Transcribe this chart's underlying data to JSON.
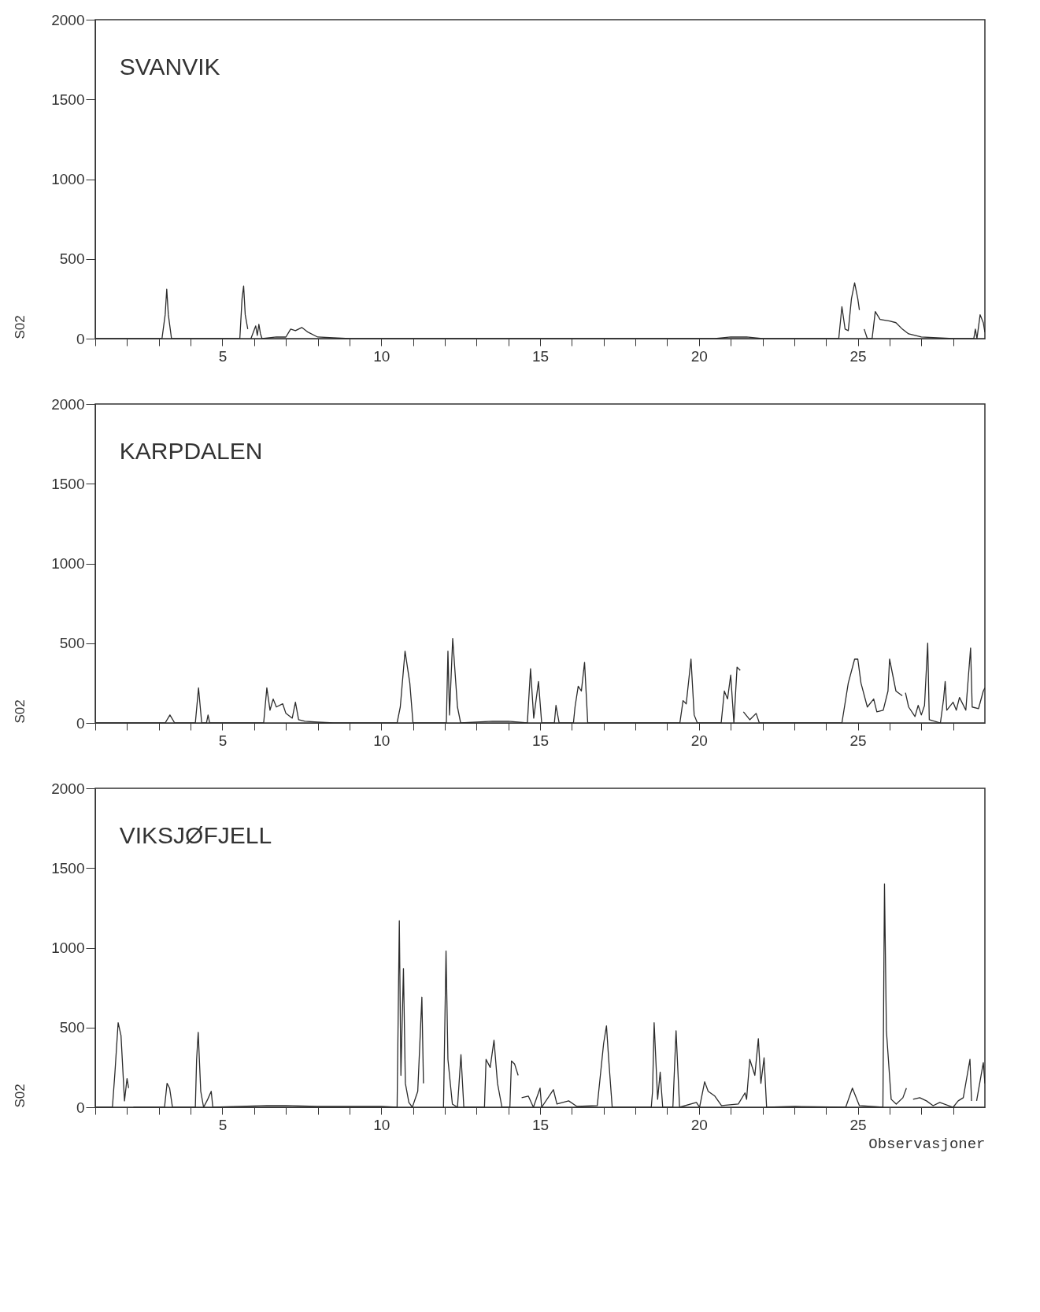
{
  "chart_data": [
    {
      "type": "line",
      "title": "SVANVIK",
      "ylabel": "S02",
      "color": "#2b2b2b",
      "grid": false,
      "marker": "none",
      "line_style": "solid",
      "xlim": [
        1,
        29
      ],
      "ylim": [
        0,
        2000
      ],
      "yticks": [
        0,
        500,
        1000,
        1500,
        2000
      ],
      "xticks": [
        {
          "value": 1,
          "label": null
        },
        {
          "value": 2,
          "label": null
        },
        {
          "value": 3,
          "label": null
        },
        {
          "value": 4,
          "label": null
        },
        5,
        {
          "value": 6,
          "label": null
        },
        {
          "value": 7,
          "label": null
        },
        {
          "value": 8,
          "label": null
        },
        {
          "value": 9,
          "label": null
        },
        10,
        {
          "value": 11,
          "label": null
        },
        {
          "value": 12,
          "label": null
        },
        {
          "value": 13,
          "label": null
        },
        {
          "value": 14,
          "label": null
        },
        15,
        {
          "value": 16,
          "label": null
        },
        {
          "value": 17,
          "label": null
        },
        {
          "value": 18,
          "label": null
        },
        {
          "value": 19,
          "label": null
        },
        20,
        {
          "value": 21,
          "label": null
        },
        {
          "value": 22,
          "label": null
        },
        {
          "value": 23,
          "label": null
        },
        {
          "value": 24,
          "label": null
        },
        25,
        {
          "value": 26,
          "label": null
        },
        {
          "value": 27,
          "label": null
        },
        {
          "value": 28,
          "label": null
        }
      ],
      "x": [
        1,
        3.1,
        3.2,
        3.25,
        3.3,
        3.4,
        5.55,
        5.62,
        5.67,
        5.72,
        5.8,
        5.85,
        5.9,
        6.05,
        6.1,
        6.15,
        6.2,
        6.25,
        6.7,
        7.0,
        7.15,
        7.3,
        7.5,
        7.7,
        8.0,
        8.5,
        9.0,
        20.5,
        21.0,
        21.5,
        22.0,
        24.4,
        24.5,
        24.6,
        24.7,
        24.8,
        24.9,
        25.0,
        25.05,
        25.1,
        25.2,
        25.3,
        25.45,
        25.55,
        25.7,
        26.0,
        26.2,
        26.4,
        26.6,
        27.0,
        27.5,
        28.0,
        28.65,
        28.7,
        28.75,
        28.85,
        28.95,
        29.0
      ],
      "values": [
        0,
        0,
        150,
        310,
        150,
        0,
        0,
        250,
        330,
        150,
        60,
        null,
        0,
        80,
        20,
        90,
        30,
        0,
        10,
        10,
        60,
        50,
        70,
        40,
        10,
        5,
        0,
        0,
        10,
        10,
        0,
        0,
        200,
        60,
        50,
        250,
        350,
        250,
        180,
        null,
        60,
        0,
        0,
        170,
        120,
        110,
        100,
        60,
        30,
        10,
        5,
        0,
        0,
        60,
        0,
        150,
        100,
        40
      ]
    },
    {
      "type": "line",
      "title": "KARPDALEN",
      "ylabel": "S02",
      "color": "#2b2b2b",
      "grid": false,
      "marker": "none",
      "line_style": "solid",
      "xlim": [
        1,
        29
      ],
      "ylim": [
        0,
        2000
      ],
      "yticks": [
        0,
        500,
        1000,
        1500,
        2000
      ],
      "xticks": [
        {
          "value": 1,
          "label": null
        },
        {
          "value": 2,
          "label": null
        },
        {
          "value": 3,
          "label": null
        },
        {
          "value": 4,
          "label": null
        },
        5,
        {
          "value": 6,
          "label": null
        },
        {
          "value": 7,
          "label": null
        },
        {
          "value": 8,
          "label": null
        },
        {
          "value": 9,
          "label": null
        },
        10,
        {
          "value": 11,
          "label": null
        },
        {
          "value": 12,
          "label": null
        },
        {
          "value": 13,
          "label": null
        },
        {
          "value": 14,
          "label": null
        },
        15,
        {
          "value": 16,
          "label": null
        },
        {
          "value": 17,
          "label": null
        },
        {
          "value": 18,
          "label": null
        },
        {
          "value": 19,
          "label": null
        },
        20,
        {
          "value": 21,
          "label": null
        },
        {
          "value": 22,
          "label": null
        },
        {
          "value": 23,
          "label": null
        },
        {
          "value": 24,
          "label": null
        },
        25,
        {
          "value": 26,
          "label": null
        },
        {
          "value": 27,
          "label": null
        },
        {
          "value": 28,
          "label": null
        }
      ],
      "x": [
        1,
        3.2,
        3.35,
        3.5,
        4.15,
        4.25,
        4.35,
        4.5,
        4.55,
        4.6,
        6.3,
        6.4,
        6.5,
        6.6,
        6.7,
        6.9,
        7.0,
        7.2,
        7.3,
        7.4,
        7.6,
        8.0,
        8.5,
        10.5,
        10.6,
        10.75,
        10.9,
        11.0,
        12.05,
        12.1,
        12.15,
        12.25,
        12.4,
        12.5,
        13.5,
        14.0,
        14.6,
        14.7,
        14.8,
        14.95,
        15.05,
        15.45,
        15.5,
        15.6,
        16.05,
        16.1,
        16.2,
        16.3,
        16.4,
        16.5,
        19.4,
        19.5,
        19.6,
        19.75,
        19.85,
        19.95,
        20.7,
        20.8,
        20.9,
        21.0,
        21.1,
        21.2,
        21.3,
        21.35,
        21.4,
        21.6,
        21.8,
        21.9,
        24.5,
        24.7,
        24.9,
        25.0,
        25.1,
        25.3,
        25.5,
        25.6,
        25.8,
        25.95,
        26.0,
        26.1,
        26.2,
        26.4,
        26.45,
        26.5,
        26.6,
        26.8,
        26.9,
        27.0,
        27.1,
        27.2,
        27.25,
        27.6,
        27.7,
        27.75,
        27.8,
        28.0,
        28.1,
        28.2,
        28.4,
        28.55,
        28.6,
        28.8,
        28.95,
        29.0
      ],
      "values": [
        0,
        0,
        50,
        0,
        0,
        220,
        0,
        0,
        50,
        0,
        0,
        220,
        80,
        150,
        100,
        120,
        60,
        30,
        130,
        20,
        10,
        5,
        0,
        0,
        100,
        450,
        250,
        0,
        0,
        450,
        50,
        530,
        100,
        0,
        10,
        10,
        0,
        340,
        30,
        260,
        0,
        0,
        110,
        0,
        0,
        100,
        230,
        200,
        380,
        0,
        0,
        140,
        120,
        400,
        50,
        0,
        0,
        200,
        150,
        300,
        0,
        350,
        330,
        null,
        70,
        20,
        60,
        0,
        0,
        250,
        400,
        400,
        250,
        100,
        150,
        70,
        80,
        200,
        400,
        300,
        200,
        170,
        null,
        190,
        100,
        40,
        110,
        50,
        110,
        500,
        20,
        0,
        150,
        260,
        80,
        130,
        80,
        160,
        80,
        470,
        100,
        90,
        200,
        220
      ]
    },
    {
      "type": "line",
      "title": "VIKSJØFJELL",
      "ylabel": "S02",
      "xlabel": "Observasjoner",
      "color": "#2b2b2b",
      "grid": false,
      "marker": "none",
      "line_style": "solid",
      "xlim": [
        1,
        29
      ],
      "ylim": [
        0,
        2000
      ],
      "yticks": [
        0,
        500,
        1000,
        1500,
        2000
      ],
      "xticks": [
        {
          "value": 1,
          "label": null
        },
        {
          "value": 2,
          "label": null
        },
        {
          "value": 3,
          "label": null
        },
        {
          "value": 4,
          "label": null
        },
        5,
        {
          "value": 6,
          "label": null
        },
        {
          "value": 7,
          "label": null
        },
        {
          "value": 8,
          "label": null
        },
        {
          "value": 9,
          "label": null
        },
        10,
        {
          "value": 11,
          "label": null
        },
        {
          "value": 12,
          "label": null
        },
        {
          "value": 13,
          "label": null
        },
        {
          "value": 14,
          "label": null
        },
        15,
        {
          "value": 16,
          "label": null
        },
        {
          "value": 17,
          "label": null
        },
        {
          "value": 18,
          "label": null
        },
        {
          "value": 19,
          "label": null
        },
        20,
        {
          "value": 21,
          "label": null
        },
        {
          "value": 22,
          "label": null
        },
        {
          "value": 23,
          "label": null
        },
        {
          "value": 24,
          "label": null
        },
        25,
        {
          "value": 26,
          "label": null
        },
        {
          "value": 27,
          "label": null
        },
        {
          "value": 28,
          "label": null
        }
      ],
      "x": [
        1,
        1.54,
        1.62,
        1.72,
        1.81,
        1.92,
        2.0,
        2.05,
        2.1,
        2.2,
        3.18,
        3.26,
        3.34,
        3.43,
        4.15,
        4.19,
        4.24,
        4.32,
        4.41,
        4.54,
        4.65,
        4.7,
        6.4,
        7.0,
        8.0,
        10.0,
        10.5,
        10.57,
        10.62,
        10.7,
        10.76,
        10.87,
        10.98,
        11.15,
        11.28,
        11.33,
        11.4,
        11.96,
        12.04,
        12.1,
        12.24,
        12.4,
        12.51,
        12.6,
        13.25,
        13.3,
        13.43,
        13.55,
        13.66,
        13.8,
        14.05,
        14.1,
        14.2,
        14.31,
        14.36,
        14.42,
        14.63,
        14.79,
        15.0,
        15.05,
        15.42,
        15.53,
        15.9,
        16.16,
        16.8,
        17.0,
        17.09,
        17.16,
        17.27,
        18.5,
        18.54,
        18.59,
        18.7,
        18.78,
        18.86,
        19.18,
        19.28,
        19.39,
        19.92,
        20.02,
        20.18,
        20.29,
        20.5,
        20.71,
        21.24,
        21.45,
        21.5,
        21.6,
        21.76,
        21.87,
        21.95,
        22.05,
        22.13,
        23.03,
        24.62,
        24.83,
        25.05,
        25.79,
        25.84,
        25.9,
        26.05,
        26.21,
        26.42,
        26.53,
        26.6,
        26.74,
        26.95,
        27.16,
        27.37,
        27.58,
        28.0,
        28.16,
        28.32,
        28.53,
        28.58,
        28.65,
        28.74,
        28.95,
        29.0
      ],
      "values": [
        0,
        0,
        220,
        530,
        450,
        40,
        180,
        120,
        null,
        0,
        0,
        150,
        120,
        0,
        0,
        300,
        470,
        100,
        0,
        50,
        100,
        0,
        10,
        10,
        5,
        5,
        0,
        1170,
        200,
        870,
        150,
        30,
        0,
        100,
        690,
        150,
        null,
        0,
        980,
        300,
        20,
        0,
        330,
        0,
        0,
        300,
        250,
        420,
        150,
        0,
        0,
        290,
        270,
        200,
        null,
        60,
        70,
        0,
        120,
        0,
        110,
        20,
        40,
        5,
        10,
        400,
        510,
        300,
        0,
        0,
        100,
        530,
        50,
        220,
        0,
        0,
        480,
        0,
        30,
        0,
        160,
        100,
        70,
        10,
        20,
        90,
        50,
        300,
        200,
        430,
        150,
        310,
        0,
        5,
        0,
        120,
        10,
        0,
        1400,
        480,
        50,
        20,
        60,
        120,
        null,
        50,
        60,
        40,
        10,
        30,
        0,
        40,
        60,
        300,
        40,
        null,
        40,
        280,
        150
      ]
    }
  ]
}
